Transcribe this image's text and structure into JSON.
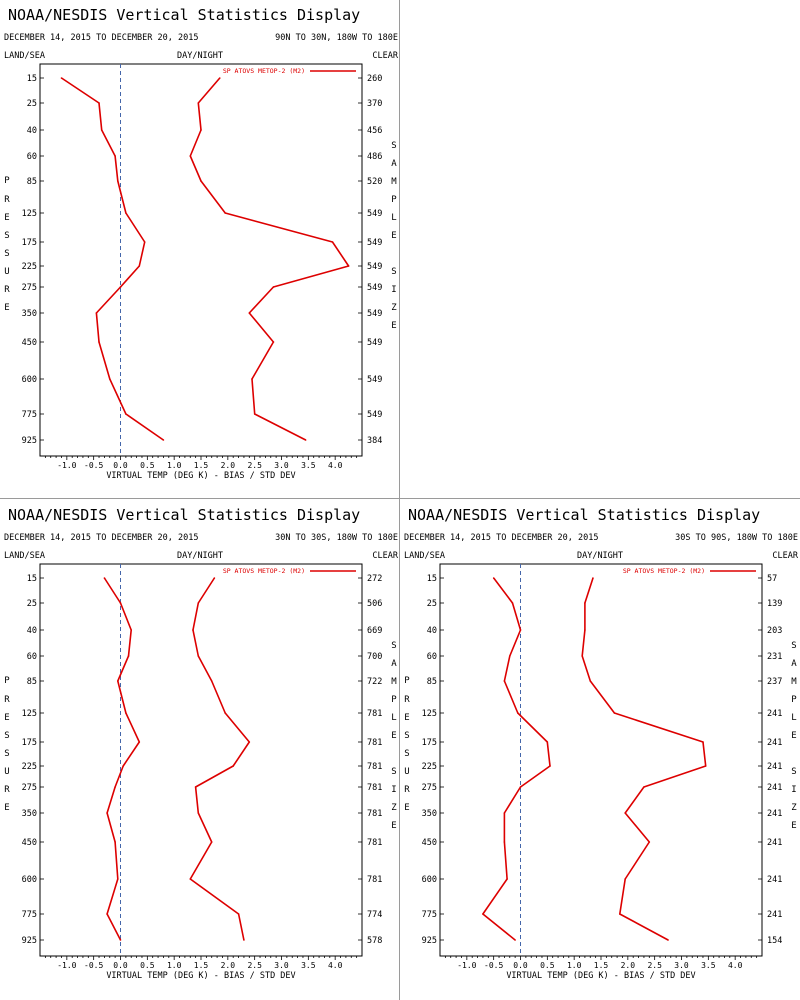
{
  "display_title": "NOAA/NESDIS Vertical Statistics Display",
  "date_range": "DECEMBER 14, 2015 TO DECEMBER 20, 2015",
  "labels": {
    "land_sea": "LAND/SEA",
    "day_night": "DAY/NIGHT",
    "clear": "CLEAR",
    "pressure_vertical": "PRESSURE",
    "sample_size_vertical": "SAMPLE SIZE",
    "xlabel": "VIRTUAL TEMP (DEG K) - BIAS / STD DEV"
  },
  "colors": {
    "series": "#dd0000",
    "axis": "#000000",
    "zero_line": "#4466aa",
    "divider": "#9a9a9a"
  },
  "chart_data": [
    {
      "type": "line",
      "region": "90N TO 30N, 180W TO 180E",
      "legend": "SP ATOVS METOP-2 (M2)",
      "xlim": [
        -1.5,
        4.5
      ],
      "xticks": [
        "-1.0",
        "-0.5",
        "0.0",
        "0.5",
        "1.0",
        "1.5",
        "2.0",
        "2.5",
        "3.0",
        "3.5",
        "4.0"
      ],
      "pressure_levels": [
        "15",
        "25",
        "40",
        "60",
        "85",
        "125",
        "175",
        "225",
        "275",
        "350",
        "450",
        "600",
        "775",
        "925"
      ],
      "sample_size": [
        "260",
        "370",
        "456",
        "486",
        "520",
        "549",
        "549",
        "549",
        "549",
        "549",
        "549",
        "549",
        "549",
        "384"
      ],
      "bias": [
        -1.1,
        -0.4,
        -0.35,
        -0.1,
        -0.05,
        0.1,
        0.45,
        0.35,
        0.0,
        -0.45,
        -0.4,
        -0.2,
        0.1,
        0.8
      ],
      "std_dev": [
        1.85,
        1.45,
        1.5,
        1.3,
        1.5,
        1.95,
        3.95,
        4.25,
        2.85,
        2.4,
        2.85,
        2.45,
        2.5,
        3.45
      ]
    },
    {
      "type": "line",
      "region": "30N TO 30S, 180W TO 180E",
      "legend": "SP ATOVS METOP-2 (M2)",
      "xlim": [
        -1.5,
        4.5
      ],
      "xticks": [
        "-1.0",
        "-0.5",
        "0.0",
        "0.5",
        "1.0",
        "1.5",
        "2.0",
        "2.5",
        "3.0",
        "3.5",
        "4.0"
      ],
      "pressure_levels": [
        "15",
        "25",
        "40",
        "60",
        "85",
        "125",
        "175",
        "225",
        "275",
        "350",
        "450",
        "600",
        "775",
        "925"
      ],
      "sample_size": [
        "272",
        "506",
        "669",
        "700",
        "722",
        "781",
        "781",
        "781",
        "781",
        "781",
        "781",
        "781",
        "774",
        "578"
      ],
      "bias": [
        -0.3,
        0.0,
        0.2,
        0.15,
        -0.05,
        0.1,
        0.35,
        0.05,
        -0.1,
        -0.25,
        -0.1,
        -0.05,
        -0.25,
        0.0
      ],
      "std_dev": [
        1.75,
        1.45,
        1.35,
        1.45,
        1.7,
        1.95,
        2.4,
        2.1,
        1.4,
        1.45,
        1.7,
        1.3,
        2.2,
        2.3
      ]
    },
    {
      "type": "line",
      "region": "30S TO 90S, 180W TO 180E",
      "legend": "SP ATOVS METOP-2 (M2)",
      "xlim": [
        -1.5,
        4.5
      ],
      "xticks": [
        "-1.0",
        "-0.5",
        "0.0",
        "0.5",
        "1.0",
        "1.5",
        "2.0",
        "2.5",
        "3.0",
        "3.5",
        "4.0"
      ],
      "pressure_levels": [
        "15",
        "25",
        "40",
        "60",
        "85",
        "125",
        "175",
        "225",
        "275",
        "350",
        "450",
        "600",
        "775",
        "925"
      ],
      "sample_size": [
        "57",
        "139",
        "203",
        "231",
        "237",
        "241",
        "241",
        "241",
        "241",
        "241",
        "241",
        "241",
        "241",
        "154"
      ],
      "bias": [
        -0.5,
        -0.15,
        0.0,
        -0.2,
        -0.3,
        -0.05,
        0.5,
        0.55,
        0.0,
        -0.3,
        -0.3,
        -0.25,
        -0.7,
        -0.1
      ],
      "std_dev": [
        1.35,
        1.2,
        1.2,
        1.15,
        1.3,
        1.75,
        3.4,
        3.45,
        2.3,
        1.95,
        2.4,
        1.95,
        1.85,
        2.75
      ]
    }
  ]
}
